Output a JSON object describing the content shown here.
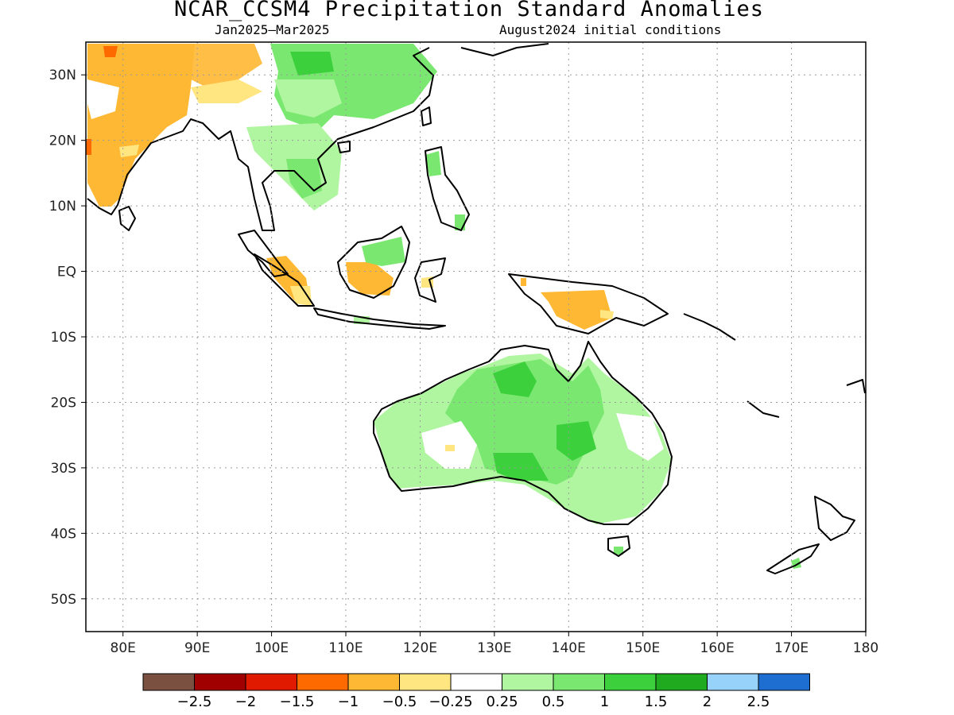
{
  "header": {
    "title": "NCAR_CCSM4 Precipitation Standard Anomalies",
    "period": "Jan2025–Mar2025",
    "init": "August2024 initial conditions"
  },
  "axes": {
    "lon_labels": [
      "80E",
      "90E",
      "100E",
      "110E",
      "120E",
      "130E",
      "140E",
      "150E",
      "160E",
      "170E",
      "180"
    ],
    "lat_labels": [
      "30N",
      "20N",
      "10N",
      "EQ",
      "10S",
      "20S",
      "30S",
      "40S",
      "50S"
    ],
    "lon_range": [
      75,
      180
    ],
    "lat_range": [
      -55,
      35
    ],
    "grid": true
  },
  "colorbar": {
    "colors": [
      "#7a5040",
      "#a00000",
      "#e01a00",
      "#ff6a00",
      "#ffb833",
      "#ffe680",
      "#ffffff",
      "#b0f5a0",
      "#7ae870",
      "#3cd03c",
      "#20aa20",
      "#96d2fa",
      "#1e6ed2"
    ],
    "labels": [
      "-2.5",
      "-2",
      "-1.5",
      "-1",
      "-0.5",
      "-0.25",
      "0.25",
      "0.5",
      "1",
      "1.5",
      "2",
      "2.5"
    ]
  },
  "anomaly_colors": {
    "dry_light": "#ffe680",
    "dry": "#ffb833",
    "dry_strong": "#ff6a00",
    "wet_light": "#b0f5a0",
    "wet": "#7ae870",
    "wet_strong": "#3cd03c"
  }
}
